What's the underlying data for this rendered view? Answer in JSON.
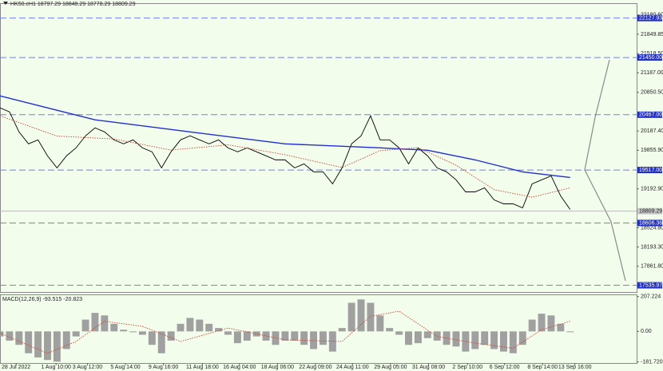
{
  "chart_data": [
    {
      "type": "line",
      "title": "HK50.cH1 18797.29 18848.29 18778.29 18809.29",
      "series": [
        {
          "color": "#000000",
          "values": [
            20585,
            20516,
            20172,
            19966,
            20035,
            19760,
            19554,
            19760,
            19897,
            20104,
            20241,
            20172,
            20035,
            19966,
            20035,
            19897,
            19829,
            19554,
            19829,
            20035,
            20104,
            20035,
            19966,
            20035,
            19897,
            19829,
            19897,
            19829,
            19760,
            19691,
            19691,
            19554,
            19622,
            19485,
            19485,
            19279,
            19554,
            19966,
            20104,
            20448,
            20035,
            20035,
            19897,
            19622,
            19897,
            19760,
            19554,
            19485,
            19347,
            19141,
            19141,
            19210,
            19003,
            18935,
            18935,
            18866,
            19279,
            19347,
            19416,
            19072,
            18839
          ]
        },
        {
          "color": "#1f2fd0",
          "x": [
            0,
            5,
            10,
            20,
            30,
            40,
            45,
            50,
            55,
            60
          ],
          "values": [
            20791,
            20585,
            20379,
            20172,
            19966,
            19897,
            19856,
            19691,
            19485,
            19389
          ]
        },
        {
          "color": "#d04030",
          "x": [
            0,
            6,
            12,
            18,
            24,
            30,
            36,
            40,
            44,
            48,
            52,
            56,
            60
          ],
          "values": [
            20450,
            20100,
            20050,
            19860,
            19950,
            19780,
            19560,
            19850,
            19900,
            19600,
            19180,
            19050,
            19210
          ]
        }
      ],
      "levels": [
        22127.93,
        {
          "value": 21450.0,
          "label": "21450.00"
        },
        {
          "value": 20467.0,
          "label": "20467.00"
        },
        {
          "value": 19517.0,
          "label": "19517.00"
        },
        18606.36,
        17535.97
      ],
      "current": 18809.29,
      "xlim": [
        0,
        67
      ],
      "ylim": [
        17420,
        22370
      ],
      "xticks": [
        {
          "value": 1.7,
          "label": "28 Jul 2022"
        },
        {
          "value": 5.9,
          "label": "1 Aug 10:00"
        },
        {
          "value": 9.2,
          "label": "3 Aug 12:00"
        },
        {
          "value": 13.2,
          "label": "5 Aug 14:00"
        },
        {
          "value": 17.2,
          "label": "9 Aug 16:00"
        },
        {
          "value": 21.3,
          "label": "11 Aug 18:00"
        },
        {
          "value": 25.2,
          "label": "16 Aug 04:00"
        },
        {
          "value": 29.2,
          "label": "18 Aug 06:00"
        },
        {
          "value": 33.2,
          "label": "22 Aug 09:00"
        },
        {
          "value": 37.1,
          "label": "24 Aug 11:00"
        },
        {
          "value": 41.1,
          "label": "29 Aug 05:00"
        },
        {
          "value": 45.1,
          "label": "31 Aug 08:00"
        },
        {
          "value": 49.2,
          "label": "2 Sep 10:00"
        },
        {
          "value": 53.1,
          "label": "6 Sep 12:00"
        },
        {
          "value": 57.1,
          "label": "8 Sep 14:00"
        },
        {
          "value": 60.5,
          "label": "13 Sep 16:00"
        }
      ],
      "yticks": [
        {
          "value": 22180.6,
          "label": "22180.60"
        },
        21849.85,
        {
          "value": 21518.5,
          "label": "21518.50"
        },
        {
          "value": 21187.0,
          "label": "21187.00"
        },
        {
          "value": 20850.5,
          "label": "20850.50"
        },
        {
          "value": 20187.4,
          "label": "20187.40"
        },
        {
          "value": 19855.9,
          "label": "19855.90"
        },
        {
          "value": 19192.9,
          "label": "19192.90"
        },
        {
          "value": 18524.8,
          "label": "18524.80"
        },
        {
          "value": 18193.3,
          "label": "18193.30"
        },
        {
          "value": 17861.8,
          "label": "17861.80"
        }
      ]
    },
    {
      "type": "bar",
      "title": "MACD(12,26,9) -93.515 -20.823",
      "series": [
        {
          "color": "#a0a0a0",
          "values": [
            -30,
            -55,
            -80,
            -130,
            -155,
            -170,
            -180,
            -105,
            -30,
            70,
            110,
            95,
            45,
            10,
            -5,
            -20,
            -80,
            -130,
            -55,
            45,
            80,
            70,
            45,
            20,
            -20,
            -70,
            -55,
            -30,
            -55,
            -80,
            -55,
            -55,
            -80,
            -105,
            -80,
            -120,
            20,
            170,
            190,
            170,
            95,
            20,
            -20,
            -80,
            -70,
            -40,
            -55,
            -80,
            -90,
            -120,
            -105,
            -80,
            -105,
            -120,
            -130,
            -80,
            70,
            105,
            95,
            45,
            -5
          ]
        },
        {
          "color": "#d04030",
          "x": [
            0,
            5,
            8,
            11,
            15,
            19,
            24,
            30,
            36,
            39,
            42,
            46,
            50,
            54,
            57,
            60
          ],
          "values": [
            -10,
            -130,
            -60,
            60,
            30,
            -60,
            20,
            -50,
            -60,
            90,
            120,
            -30,
            -70,
            -100,
            10,
            60
          ]
        }
      ],
      "xlim": [
        0,
        67
      ],
      "ylim": [
        -188,
        215
      ],
      "yticks": [
        207.224,
        {
          "value": 0,
          "label": "0.00"
        },
        {
          "value": -181.72,
          "label": "-181.720"
        }
      ]
    }
  ]
}
